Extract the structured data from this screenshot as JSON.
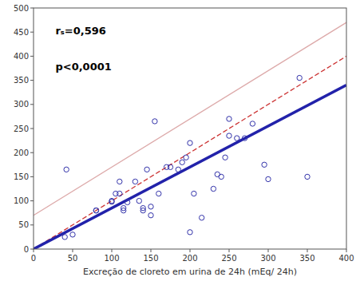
{
  "chart_data": {
    "type": "scatter",
    "x_label": "Excreção de cloreto em urina de 24h (mEq/ 24h)",
    "annotations": [
      "rₛ=0,596",
      "p<0,0001"
    ],
    "xlim": [
      0,
      400
    ],
    "ylim": [
      0,
      500
    ],
    "xticks": [
      0,
      50,
      100,
      150,
      200,
      250,
      300,
      350,
      400
    ],
    "yticks": [
      0,
      50,
      100,
      150,
      200,
      250,
      300,
      350,
      400,
      450,
      500
    ],
    "grid": false,
    "series": [
      {
        "type": "line",
        "color": "#ddaaaa",
        "line_style": "solid",
        "x": [
          0,
          400
        ],
        "values": [
          70,
          470
        ]
      },
      {
        "type": "line",
        "color": "#cc3333",
        "line_style": "dashed",
        "x": [
          0,
          400
        ],
        "values": [
          0,
          400
        ]
      },
      {
        "type": "line",
        "color": "#2222aa",
        "line_style": "solid",
        "x": [
          0,
          400
        ],
        "values": [
          0,
          340
        ]
      },
      {
        "type": "scatter",
        "color": "#3333aa",
        "marker": "circle",
        "x": [
          40,
          42,
          50,
          80,
          80,
          100,
          100,
          105,
          110,
          110,
          115,
          115,
          120,
          130,
          135,
          140,
          140,
          145,
          150,
          150,
          155,
          160,
          170,
          175,
          185,
          190,
          195,
          200,
          200,
          205,
          215,
          230,
          235,
          240,
          245,
          250,
          250,
          260,
          270,
          280,
          295,
          300,
          340,
          350
        ],
        "values": [
          25,
          165,
          30,
          80,
          80,
          100,
          98,
          115,
          115,
          140,
          80,
          85,
          97,
          140,
          100,
          80,
          85,
          165,
          70,
          88,
          265,
          115,
          170,
          170,
          165,
          180,
          190,
          220,
          35,
          115,
          65,
          125,
          155,
          150,
          190,
          235,
          270,
          230,
          230,
          260,
          175,
          145,
          355,
          150
        ]
      }
    ]
  }
}
